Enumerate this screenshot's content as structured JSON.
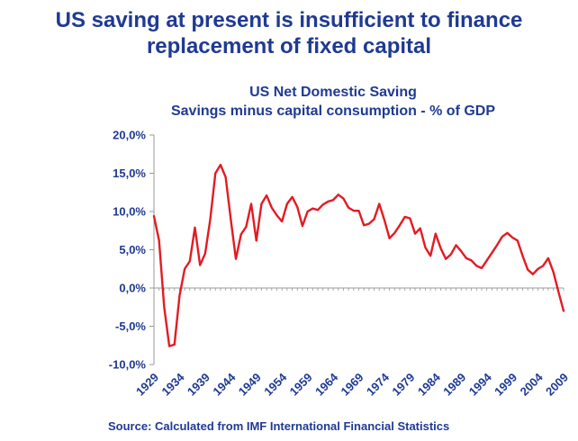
{
  "headline": {
    "line1": "US saving at present is insufficient to finance",
    "line2": "replacement of fixed capital"
  },
  "source": "Source: Calculated from IMF International Financial Statistics",
  "colors": {
    "text": "#1f3a93",
    "line": "#e31b23",
    "axis": "#999999"
  },
  "chart_data": {
    "type": "line",
    "title": "US Net Domestic Saving",
    "subtitle": "Savings minus capital consumption - % of GDP",
    "xlabel": "",
    "ylabel": "",
    "ylim": [
      -10,
      20
    ],
    "yticks": [
      20,
      15,
      10,
      5,
      0,
      -5,
      -10
    ],
    "ytick_labels": [
      "20,0%",
      "15,0%",
      "10,0%",
      "5,0%",
      "0,0%",
      "-5,0%",
      "-10,0%"
    ],
    "xticks": [
      1929,
      1934,
      1939,
      1944,
      1949,
      1954,
      1959,
      1964,
      1969,
      1974,
      1979,
      1984,
      1989,
      1994,
      1999,
      2004,
      2009
    ],
    "series": [
      {
        "name": "US Net Domestic Saving",
        "x": [
          1929,
          1930,
          1931,
          1932,
          1933,
          1934,
          1935,
          1936,
          1937,
          1938,
          1939,
          1940,
          1941,
          1942,
          1943,
          1944,
          1945,
          1946,
          1947,
          1948,
          1949,
          1950,
          1951,
          1952,
          1953,
          1954,
          1955,
          1956,
          1957,
          1958,
          1959,
          1960,
          1961,
          1962,
          1963,
          1964,
          1965,
          1966,
          1967,
          1968,
          1969,
          1970,
          1971,
          1972,
          1973,
          1974,
          1975,
          1976,
          1977,
          1978,
          1979,
          1980,
          1981,
          1982,
          1983,
          1984,
          1985,
          1986,
          1987,
          1988,
          1989,
          1990,
          1991,
          1992,
          1993,
          1994,
          1995,
          1996,
          1997,
          1998,
          1999,
          2000,
          2001,
          2002,
          2003,
          2004,
          2005,
          2006,
          2007,
          2008,
          2009
        ],
        "values": [
          9.4,
          6.2,
          -2.5,
          -7.6,
          -7.4,
          -1.0,
          2.5,
          3.5,
          7.9,
          3.0,
          4.5,
          9.0,
          15.0,
          16.1,
          14.5,
          9.0,
          3.8,
          7.0,
          8.0,
          11.0,
          6.2,
          11.0,
          12.1,
          10.5,
          9.5,
          8.7,
          11.0,
          11.9,
          10.6,
          8.1,
          10.0,
          10.4,
          10.2,
          10.9,
          11.3,
          11.5,
          12.2,
          11.7,
          10.5,
          10.1,
          10.1,
          8.2,
          8.4,
          9.0,
          11.0,
          8.9,
          6.5,
          7.2,
          8.2,
          9.3,
          9.1,
          7.1,
          7.8,
          5.3,
          4.2,
          7.1,
          5.2,
          3.8,
          4.4,
          5.6,
          4.8,
          3.9,
          3.6,
          2.9,
          2.6,
          3.6,
          4.6,
          5.6,
          6.7,
          7.2,
          6.6,
          6.2,
          4.2,
          2.4,
          1.8,
          2.5,
          2.9,
          3.9,
          2.1,
          -0.5,
          -3.0
        ]
      }
    ]
  }
}
